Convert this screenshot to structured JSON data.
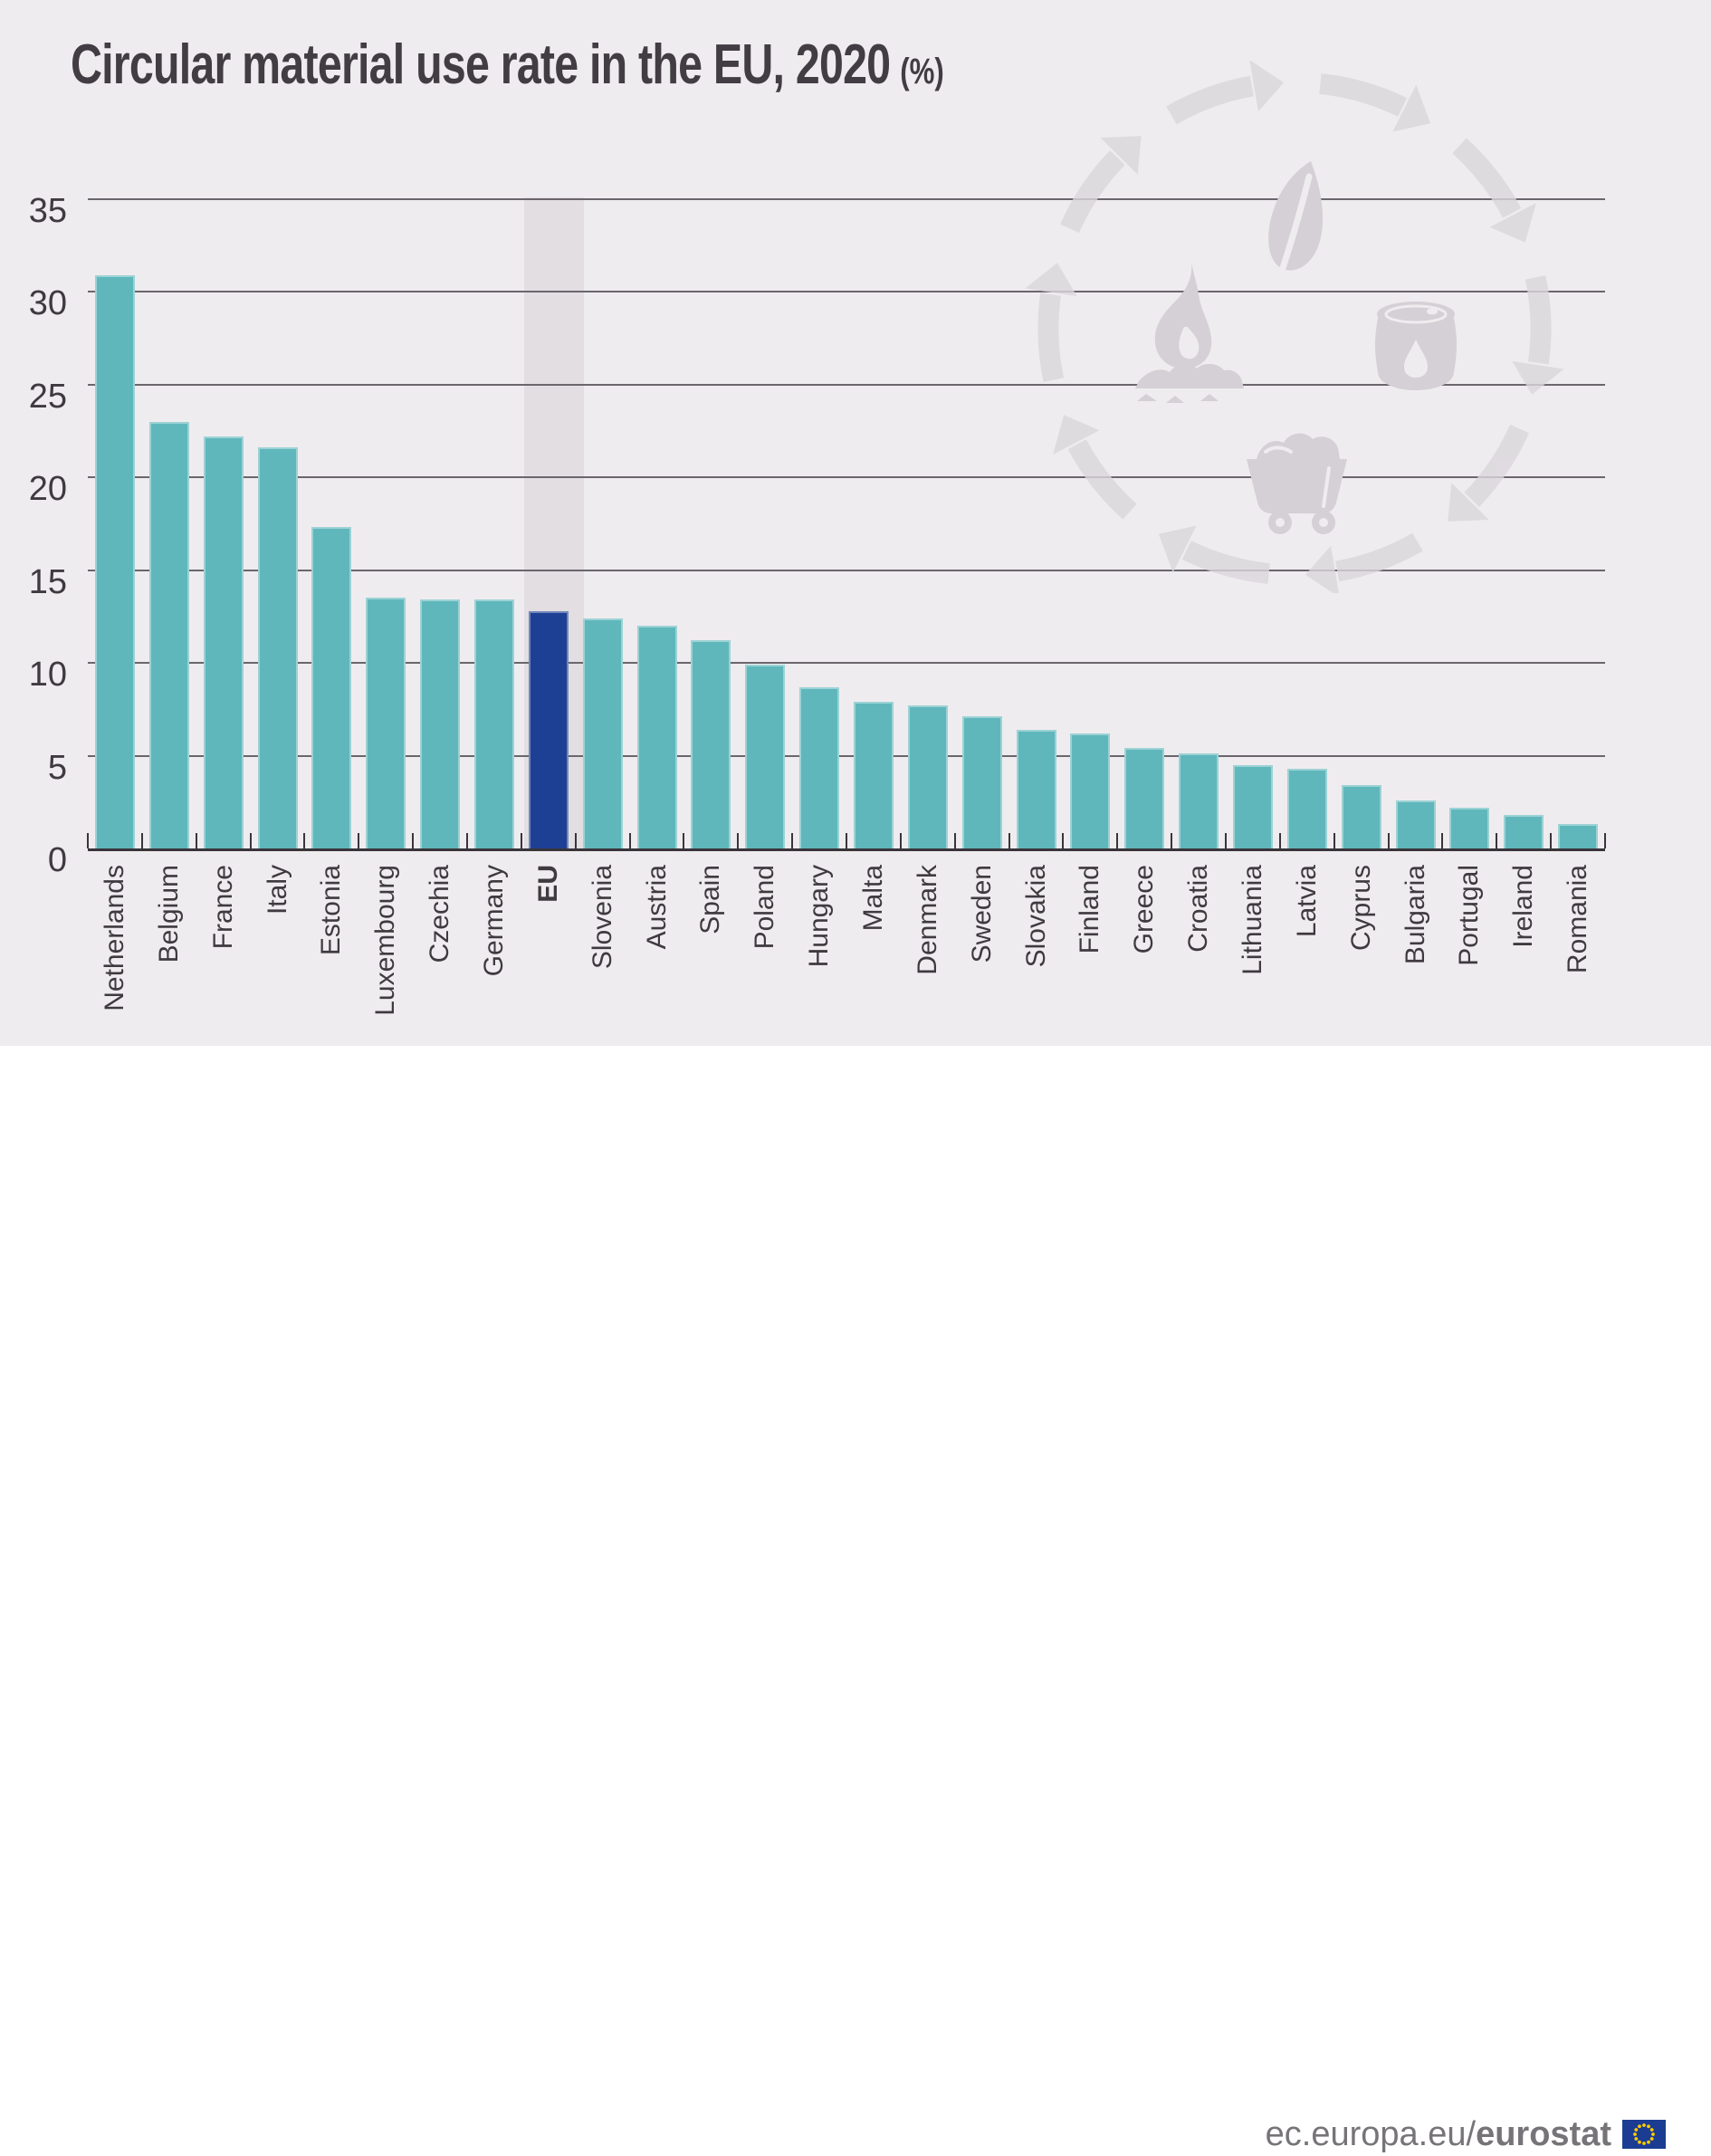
{
  "page": {
    "title_main": "Circular material use rate in the EU, 2020",
    "title_unit": "(%)"
  },
  "footer": {
    "url_prefix": "ec.europa.eu/",
    "url_bold": "eurostat",
    "flag_icon": "eu-flag"
  },
  "watermark": {
    "icons": [
      "circular-arrows-icon",
      "leaf-icon",
      "flame-coal-icon",
      "oil-barrel-icon",
      "mine-cart-icon"
    ]
  },
  "colors": {
    "background": "#EFECEF",
    "footer_background": "#FFFFFF",
    "bar": "#5FB7BB",
    "highlight_bar": "#1E4094",
    "highlight_band": "#E2DEE2",
    "gridline": "#6A666C",
    "axis": "#39353A",
    "text": "#3E3A3F",
    "footer_text": "#777479",
    "watermark_icon": "#D4D0D5",
    "watermark_arrow": "#DBD7DC",
    "flag_blue": "#1B3C92",
    "flag_star_yellow": "#FFCC00"
  },
  "chart_data": {
    "type": "bar",
    "title": "Circular material use rate in the EU, 2020 (%)",
    "unit": "%",
    "categories": [
      "Netherlands",
      "Belgium",
      "France",
      "Italy",
      "Estonia",
      "Luxembourg",
      "Czechia",
      "Germany",
      "EU",
      "Slovenia",
      "Austria",
      "Spain",
      "Poland",
      "Hungary",
      "Malta",
      "Denmark",
      "Sweden",
      "Slovakia",
      "Finland",
      "Greece",
      "Croatia",
      "Lithuania",
      "Latvia",
      "Cyprus",
      "Bulgaria",
      "Portugal",
      "Ireland",
      "Romania"
    ],
    "values": [
      30.9,
      23.0,
      22.2,
      21.6,
      17.3,
      13.5,
      13.4,
      13.4,
      12.8,
      12.4,
      12.0,
      11.2,
      9.9,
      8.7,
      7.9,
      7.7,
      7.1,
      6.4,
      6.2,
      5.4,
      5.1,
      4.5,
      4.3,
      3.4,
      2.6,
      2.2,
      1.8,
      1.3
    ],
    "highlight_category": "EU",
    "ylim": [
      0,
      35
    ],
    "ytick_step": 5,
    "yticks": [
      0,
      5,
      10,
      15,
      20,
      25,
      30,
      35
    ],
    "grid": true,
    "x_labels_rotated": true,
    "legend": "none"
  }
}
